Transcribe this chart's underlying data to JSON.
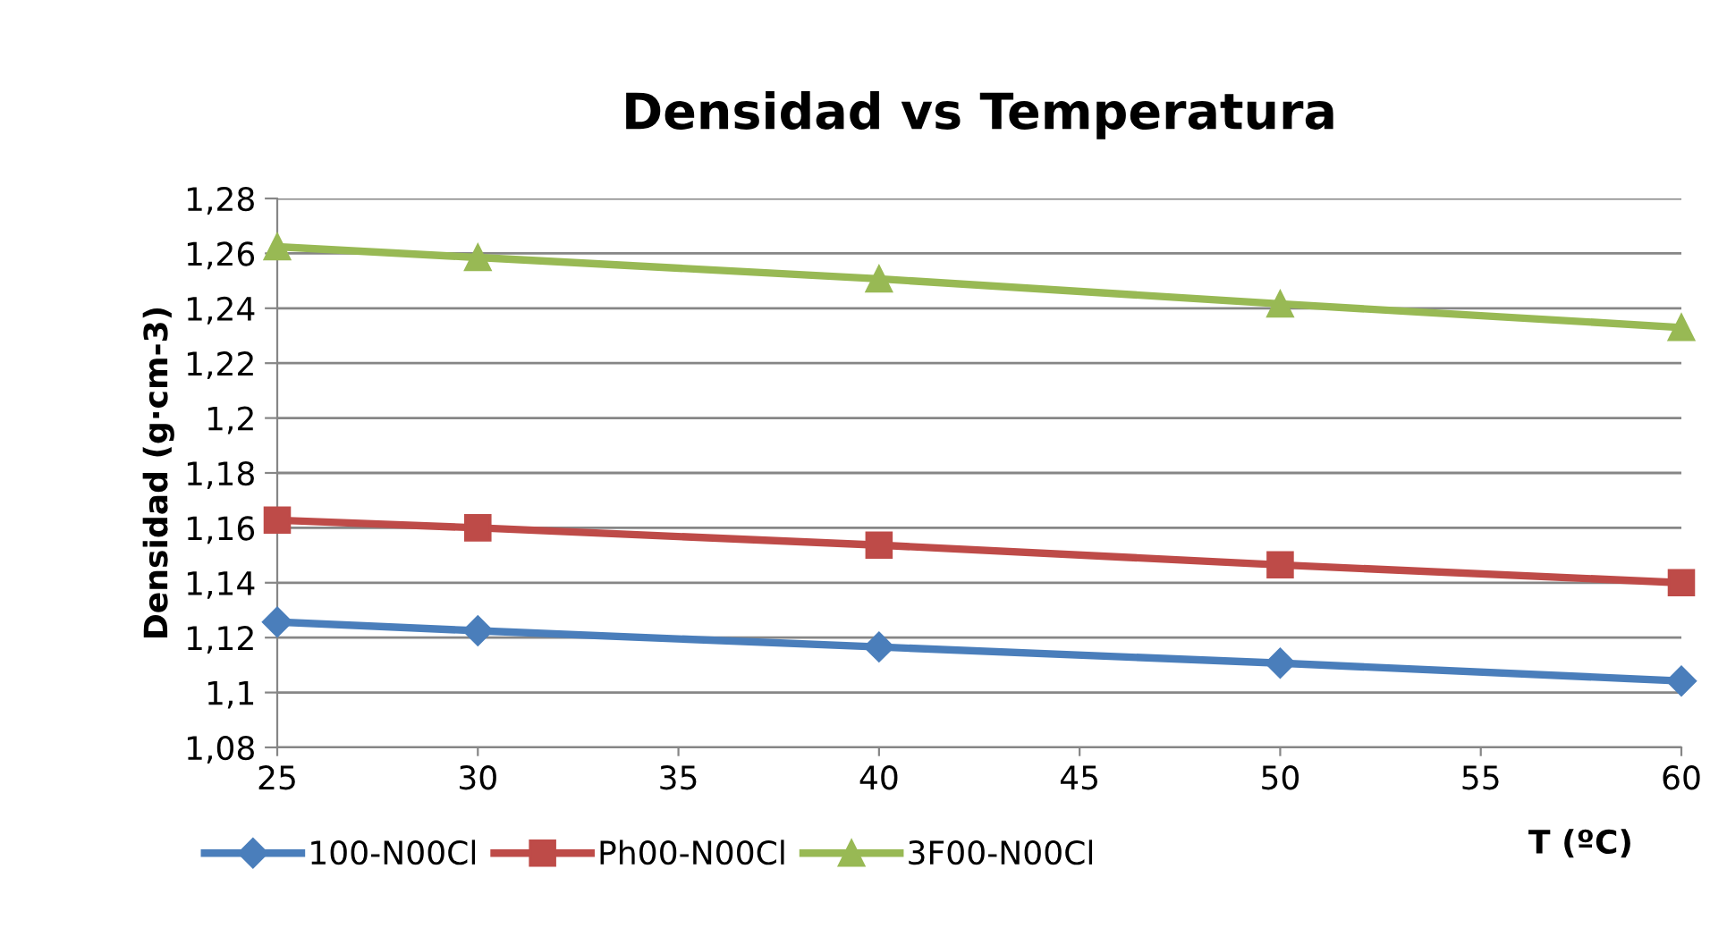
{
  "chart_data": {
    "type": "line",
    "title": "Densidad vs Temperatura",
    "xlabel": "T (ºC)",
    "ylabel": "Densidad (g·cm-3)",
    "x": [
      25,
      30,
      40,
      50,
      60
    ],
    "series": [
      {
        "name": "100-N00Cl",
        "color": "#4a7ebb",
        "marker": "diamond",
        "values": [
          1.1257,
          1.1225,
          1.1166,
          1.1107,
          1.1042
        ]
      },
      {
        "name": "Ph00-N00Cl",
        "color": "#be4b48",
        "marker": "square",
        "values": [
          1.1628,
          1.16,
          1.1537,
          1.1465,
          1.14
        ]
      },
      {
        "name": "3F00-N00Cl",
        "color": "#98b954",
        "marker": "triangle",
        "values": [
          1.2624,
          1.2585,
          1.2507,
          1.2416,
          1.233
        ]
      }
    ],
    "xlim": [
      25,
      60
    ],
    "xticks": [
      25,
      30,
      35,
      40,
      45,
      50,
      55,
      60
    ],
    "ylim": [
      1.08,
      1.28
    ],
    "yticks": [
      {
        "value": 1.08,
        "label": "1,08"
      },
      {
        "value": 1.1,
        "label": "1,1"
      },
      {
        "value": 1.12,
        "label": "1,12"
      },
      {
        "value": 1.14,
        "label": "1,14"
      },
      {
        "value": 1.16,
        "label": "1,16"
      },
      {
        "value": 1.18,
        "label": "1,18"
      },
      {
        "value": 1.2,
        "label": "1,2"
      },
      {
        "value": 1.22,
        "label": "1,22"
      },
      {
        "value": 1.24,
        "label": "1,24"
      },
      {
        "value": 1.26,
        "label": "1,26"
      },
      {
        "value": 1.28,
        "label": "1,28"
      }
    ],
    "grid": "y",
    "legend": "bottom"
  }
}
